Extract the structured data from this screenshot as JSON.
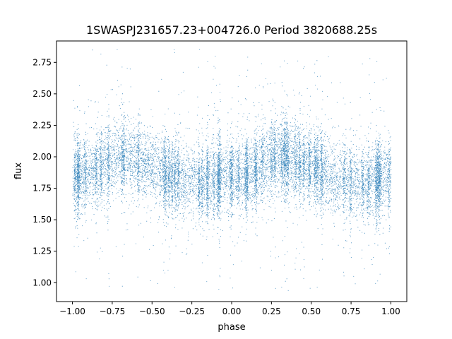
{
  "chart_data": {
    "type": "scatter",
    "title": "1SWASPJ231657.23+004726.0 Period 3820688.25s",
    "xlabel": "phase",
    "ylabel": "flux",
    "xlim": [
      -1.1,
      1.1
    ],
    "ylim": [
      0.85,
      2.92
    ],
    "xticks": [
      -1.0,
      -0.75,
      -0.5,
      -0.25,
      0.0,
      0.25,
      0.5,
      0.75,
      1.0
    ],
    "xtick_labels": [
      "−1.00",
      "−0.75",
      "−0.50",
      "−0.25",
      "0.00",
      "0.25",
      "0.50",
      "0.75",
      "1.00"
    ],
    "yticks": [
      1.0,
      1.25,
      1.5,
      1.75,
      2.0,
      2.25,
      2.5,
      2.75
    ],
    "ytick_labels": [
      "1.00",
      "1.25",
      "1.50",
      "1.75",
      "2.00",
      "2.25",
      "2.50",
      "2.75"
    ],
    "grid": false,
    "point_color": "#1f77b4",
    "series": [
      {
        "x_range": [
          -1.0,
          1.0
        ],
        "approx_point_count": 14000,
        "periodic_in_phase": true,
        "trend_phase": [
          -1.0,
          -0.9,
          -0.75,
          -0.65,
          -0.5,
          -0.35,
          -0.2,
          -0.1,
          0.0,
          0.1,
          0.25,
          0.35,
          0.5,
          0.65,
          0.8,
          0.9,
          1.0
        ],
        "trend_flux": [
          1.85,
          1.86,
          1.98,
          2.0,
          1.93,
          1.82,
          1.8,
          1.82,
          1.85,
          1.86,
          1.98,
          2.0,
          1.93,
          1.82,
          1.8,
          1.82,
          1.85
        ],
        "core_scatter": 0.14,
        "outlier_range": [
          0.93,
          2.87
        ]
      }
    ]
  }
}
